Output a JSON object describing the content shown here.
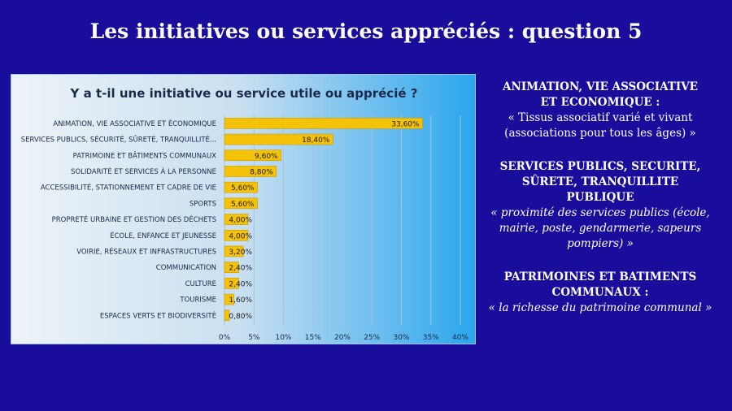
{
  "slide": {
    "title": "Les initiatives ou services appréciés : question 5"
  },
  "colors": {
    "background": "#1a0d9c",
    "bar": "#f5c20a",
    "bar_border": "#c99a00",
    "text_dark": "#1b2a4a"
  },
  "chart_data": {
    "type": "bar",
    "orientation": "horizontal",
    "title": "Y a t-il une initiative ou service utile ou apprécié ?",
    "categories": [
      "ANIMATION, VIE ASSOCIATIVE ET ÉCONOMIQUE",
      "SERVICES PUBLICS, SÉCURITÉ, SÛRETÉ, TRANQUILLITÉ...",
      "PATRIMOINE ET BÂTIMENTS COMMUNAUX",
      "SOLIDARITÉ ET SERVICES À LA PERSONNE",
      "ACCESSIBILITÉ, STATIONNEMENT ET CADRE DE VIE",
      "SPORTS",
      "PROPRETÉ URBAINE ET GESTION DES DÉCHETS",
      "ÉCOLE, ENFANCE ET JEUNESSE",
      "VOIRIE, RÉSEAUX ET INFRASTRUCTURES",
      "COMMUNICATION",
      "CULTURE",
      "TOURISME",
      "ESPACES VERTS ET BIODIVERSITÉ"
    ],
    "values": [
      33.6,
      18.4,
      9.6,
      8.8,
      5.6,
      5.6,
      4.0,
      4.0,
      3.2,
      2.4,
      2.4,
      1.6,
      0.8
    ],
    "data_labels": [
      "33,60%",
      "18,40%",
      "9,60%",
      "8,80%",
      "5,60%",
      "5,60%",
      "4,00%",
      "4,00%",
      "3,20%",
      "2,40%",
      "2,40%",
      "1,60%",
      "0,80%"
    ],
    "xlim": [
      0,
      40
    ],
    "x_ticks": [
      0,
      5,
      10,
      15,
      20,
      25,
      30,
      35,
      40
    ],
    "x_tick_labels": [
      "0%",
      "5%",
      "10%",
      "15%",
      "20%",
      "25%",
      "30%",
      "35%",
      "40%"
    ],
    "grid": "vertical",
    "legend": "none"
  },
  "side_text": [
    {
      "title_lines": [
        "ANIMATION, VIE ASSOCIATIVE",
        "ET ECONOMIQUE :"
      ],
      "quote_lines": [
        "« Tissus associatif varié et vivant",
        "(associations pour tous les âges) »"
      ],
      "italic": false
    },
    {
      "title_lines": [
        "SERVICES PUBLICS, SECURITE,",
        "SÛRETE, TRANQUILLITE",
        "PUBLIQUE"
      ],
      "quote_lines": [
        "« proximité des services publics (école,",
        "mairie, poste, gendarmerie, sapeurs",
        "pompiers) »"
      ],
      "italic": true
    },
    {
      "title_lines": [
        "PATRIMOINES ET BATIMENTS",
        "COMMUNAUX :"
      ],
      "quote_lines": [
        "« la richesse du patrimoine communal »"
      ],
      "italic": true
    }
  ]
}
